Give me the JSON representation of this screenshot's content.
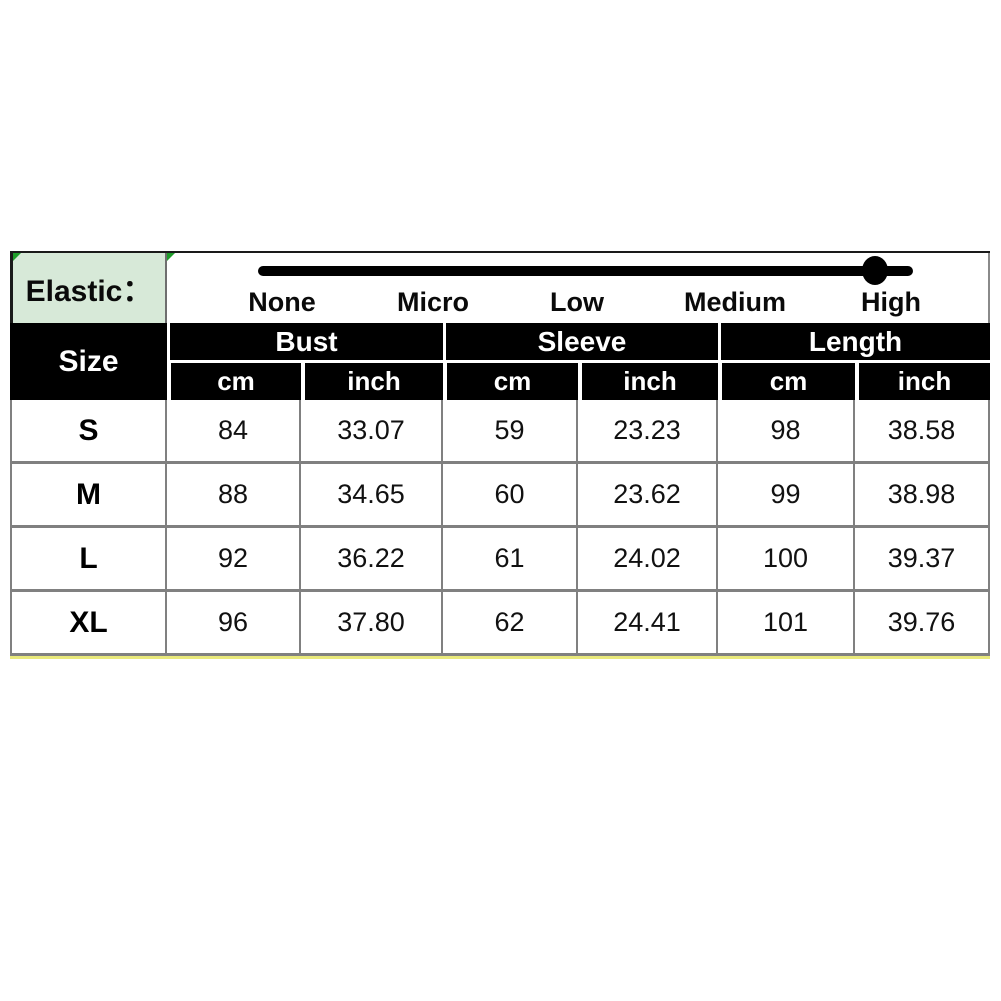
{
  "window": {
    "background": "#ffffff"
  },
  "elastic": {
    "label": "Elastic：",
    "levels": [
      "None",
      "Micro",
      "Low",
      "Medium",
      "High"
    ],
    "selected_level": "High",
    "knob_position_pct": 94
  },
  "chart_data": {
    "type": "table",
    "row_header": "Size",
    "column_groups": [
      "Bust",
      "Sleeve",
      "Length"
    ],
    "unit_headers": [
      "cm",
      "inch"
    ],
    "rows": [
      {
        "size": "S",
        "cells": [
          "84",
          "33.07",
          "59",
          "23.23",
          "98",
          "38.58"
        ]
      },
      {
        "size": "M",
        "cells": [
          "88",
          "34.65",
          "60",
          "23.62",
          "99",
          "38.98"
        ]
      },
      {
        "size": "L",
        "cells": [
          "92",
          "36.22",
          "61",
          "24.02",
          "100",
          "39.37"
        ]
      },
      {
        "size": "XL",
        "cells": [
          "96",
          "37.80",
          "62",
          "24.41",
          "101",
          "39.76"
        ]
      }
    ]
  },
  "colors": {
    "elastic_cell_bg": "#d7e9d8",
    "header_bg": "#000000",
    "header_text": "#ffffff",
    "grid_border": "#808080",
    "slider": "#000000",
    "bottom_accent": "#e9e97b",
    "corner_flag": "#1f9d2a"
  }
}
